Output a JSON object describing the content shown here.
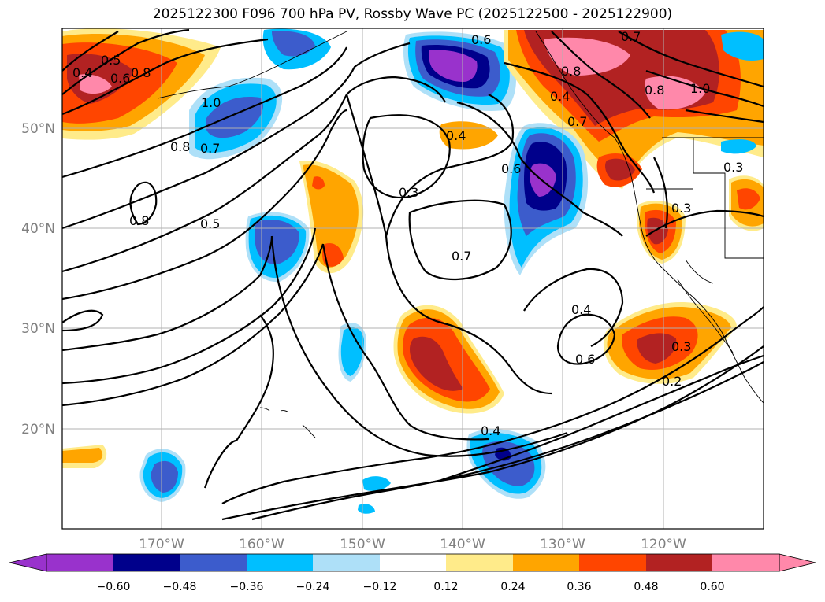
{
  "title": "2025122300 F096 700 hPa PV, Rossby Wave PC (2025122500 - 2025122900)",
  "map": {
    "lon_range": [
      -180,
      -110
    ],
    "lat_range": [
      10,
      60
    ],
    "lat_ticks": [
      {
        "value": 50,
        "label": "50°N"
      },
      {
        "value": 40,
        "label": "40°N"
      },
      {
        "value": 30,
        "label": "30°N"
      },
      {
        "value": 20,
        "label": "20°N"
      }
    ],
    "lon_ticks": [
      {
        "value": -170,
        "label": "170°W"
      },
      {
        "value": -160,
        "label": "160°W"
      },
      {
        "value": -150,
        "label": "150°W"
      },
      {
        "value": -140,
        "label": "140°W"
      },
      {
        "value": -130,
        "label": "130°W"
      },
      {
        "value": -120,
        "label": "120°W"
      }
    ],
    "pv_contour_labels": [
      "0.4",
      "0.5",
      "0.6",
      "0.8",
      "1.0",
      "0.8",
      "0.7",
      "0.8",
      "0.5",
      "0.4",
      "0.3",
      "0.6",
      "0.7",
      "0.4",
      "0.6",
      "0.4",
      "0.6",
      "0.7",
      "0.8",
      "1.0",
      "0.7",
      "0.8",
      "0.3",
      "0.3",
      "0.3",
      "0.2",
      "0.4"
    ]
  },
  "colorbar": {
    "ticks": [
      "−0.60",
      "−0.48",
      "−0.36",
      "−0.24",
      "−0.12",
      "0.12",
      "0.24",
      "0.36",
      "0.48",
      "0.60"
    ],
    "colors": [
      "#9932cc",
      "#00008b",
      "#3c5ccc",
      "#00bfff",
      "#aee0f8",
      "#ffffff",
      "#ffeb8a",
      "#ffa500",
      "#ff4500",
      "#b22222",
      "#ff88aa",
      "#ff88aa"
    ]
  }
}
